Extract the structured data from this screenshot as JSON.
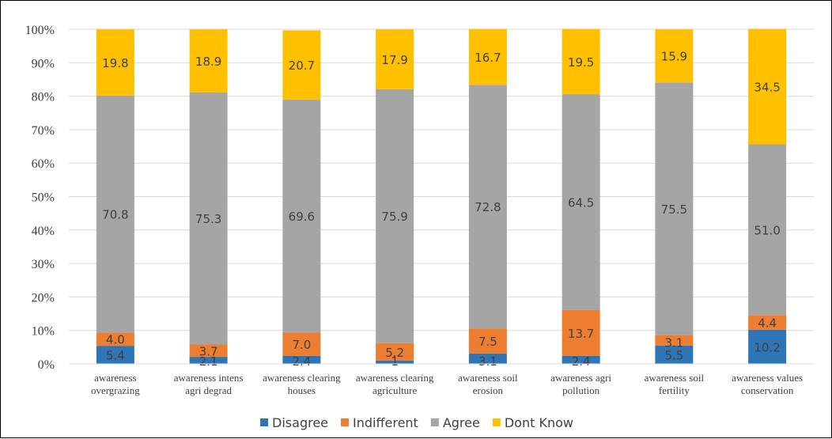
{
  "chart_data": {
    "type": "bar",
    "stacked": true,
    "categories": [
      "awareness overgrazing",
      "awareness intens agri degrad",
      "awareness clearing houses",
      "awareness clearing agriculture",
      "awareness soil erosion",
      "awareness agri pollution",
      "awareness soil fertility",
      "awareness values conservation"
    ],
    "category_lines": [
      [
        "awareness",
        "overgrazing"
      ],
      [
        "awareness intens",
        "agri degrad"
      ],
      [
        "awareness clearing",
        "houses"
      ],
      [
        "awareness clearing",
        "agriculture"
      ],
      [
        "awareness soil",
        "erosion"
      ],
      [
        "awareness agri",
        "pollution"
      ],
      [
        "awareness soil",
        "fertility"
      ],
      [
        "awareness values",
        "conservation"
      ]
    ],
    "series": [
      {
        "name": "Disagree",
        "color": "#2e75b6",
        "values": [
          5.4,
          2.1,
          2.4,
          1,
          3.1,
          2.4,
          5.5,
          10.2
        ],
        "labels": [
          "5.4",
          "2.1",
          "2.4",
          "1",
          "3.1",
          "2.4",
          "5.5",
          "10.2"
        ]
      },
      {
        "name": "Indifferent",
        "color": "#ed7d31",
        "values": [
          4.0,
          3.7,
          7.0,
          5.2,
          7.5,
          13.7,
          3.1,
          4.4
        ],
        "labels": [
          "4.0",
          "3.7",
          "7.0",
          "5.2",
          "7.5",
          "13.7",
          "3.1",
          "4.4"
        ]
      },
      {
        "name": "Agree",
        "color": "#a5a5a5",
        "values": [
          70.8,
          75.3,
          69.6,
          75.9,
          72.8,
          64.5,
          75.5,
          51.0
        ],
        "labels": [
          "70.8",
          "75.3",
          "69.6",
          "75.9",
          "72.8",
          "64.5",
          "75.5",
          "51.0"
        ]
      },
      {
        "name": "Dont Know",
        "color": "#ffc000",
        "values": [
          19.8,
          18.9,
          20.7,
          17.9,
          16.7,
          19.5,
          15.9,
          34.5
        ],
        "labels": [
          "19.8",
          "18.9",
          "20.7",
          "17.9",
          "16.7",
          "19.5",
          "15.9",
          "34.5"
        ]
      }
    ],
    "y_ticks": [
      "0%",
      "10%",
      "20%",
      "30%",
      "40%",
      "50%",
      "60%",
      "70%",
      "80%",
      "90%",
      "100%"
    ],
    "ylim": [
      0,
      100
    ],
    "grid": true,
    "legend_position": "bottom",
    "title": "",
    "xlabel": "",
    "ylabel": ""
  }
}
